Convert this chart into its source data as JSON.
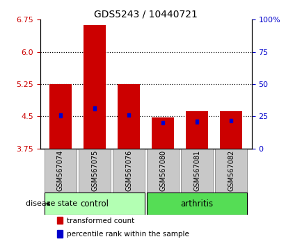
{
  "title": "GDS5243 / 10440721",
  "samples": [
    "GSM567074",
    "GSM567075",
    "GSM567076",
    "GSM567080",
    "GSM567081",
    "GSM567082"
  ],
  "groups": [
    "control",
    "control",
    "control",
    "arthritis",
    "arthritis",
    "arthritis"
  ],
  "bar_tops": [
    5.25,
    6.62,
    5.25,
    4.47,
    4.62,
    4.62
  ],
  "bar_bottom": 3.75,
  "blue_positions": [
    4.52,
    4.68,
    4.53,
    4.35,
    4.38,
    4.4
  ],
  "bar_color": "#cc0000",
  "blue_color": "#0000cc",
  "yticks_left": [
    3.75,
    4.5,
    5.25,
    6.0,
    6.75
  ],
  "yticks_right": [
    0,
    25,
    50,
    75,
    100
  ],
  "yticks_right_labels": [
    "0",
    "25",
    "50",
    "75",
    "100%"
  ],
  "hlines": [
    4.5,
    5.25,
    6.0
  ],
  "control_color": "#b3ffb3",
  "arthritis_color": "#55dd55",
  "group_label": "disease state",
  "legend_items": [
    "transformed count",
    "percentile rank within the sample"
  ],
  "legend_colors": [
    "#cc0000",
    "#0000cc"
  ],
  "tick_label_area_color": "#c8c8c8",
  "figsize": [
    4.11,
    3.54
  ],
  "dpi": 100,
  "bar_width": 0.65,
  "ymin": 3.75,
  "ymax": 6.75
}
